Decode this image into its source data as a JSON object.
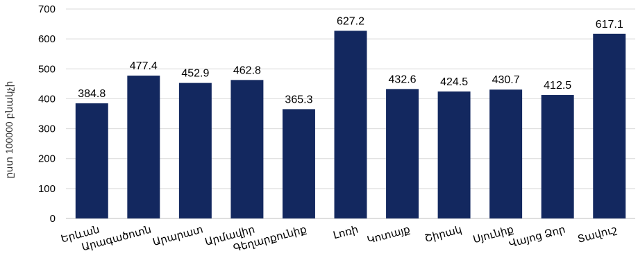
{
  "chart_data": {
    "type": "bar",
    "categories": [
      "Երևան",
      "Արագածոտն",
      "Արարատ",
      "Արմավիր",
      "Գեղարքունիք",
      "Լոռի",
      "Կոտայք",
      "Շիրակ",
      "Սյունիք",
      "Վայոց Ձոր",
      "Տավուշ"
    ],
    "values": [
      384.8,
      477.4,
      452.9,
      462.8,
      365.3,
      627.2,
      432.6,
      424.5,
      430.7,
      412.5,
      617.1
    ],
    "data_labels": [
      "384.8",
      "477.4",
      "452.9",
      "462.8",
      "365.3",
      "627.2",
      "432.6",
      "424.5",
      "430.7",
      "412.5",
      "617.1"
    ],
    "title": "",
    "xlabel": "",
    "ylabel": "ըստ 100000 բնակչի",
    "ylim": [
      0,
      700
    ],
    "yticks": [
      "0",
      "100",
      "200",
      "300",
      "400",
      "500",
      "600",
      "700"
    ],
    "grid": true,
    "bar_color": "#13285f"
  }
}
